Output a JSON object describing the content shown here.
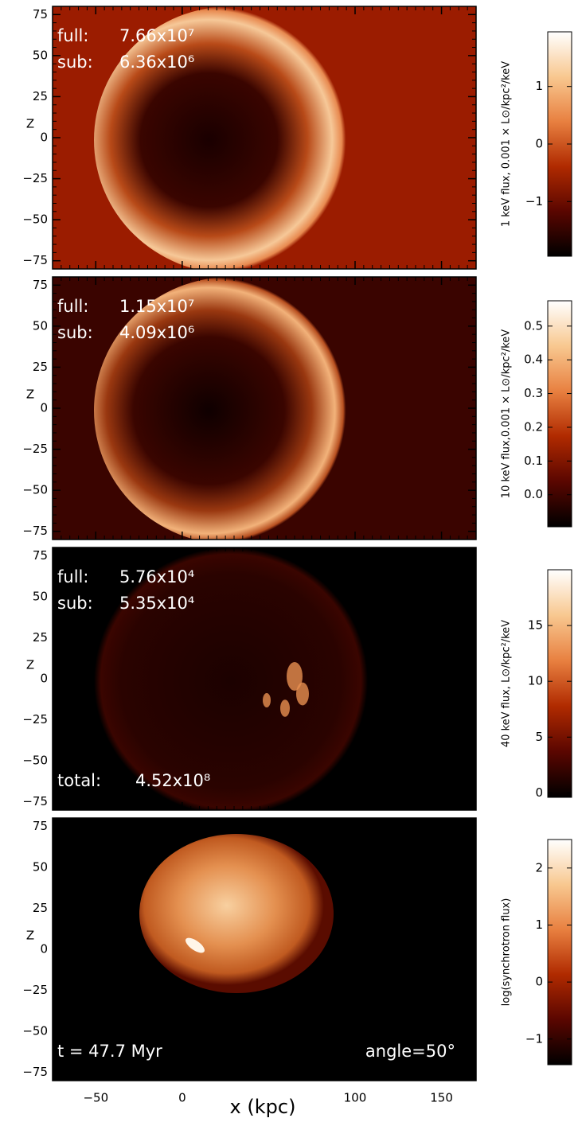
{
  "chart_data": [
    {
      "type": "image",
      "xlim": [
        -75,
        170
      ],
      "ylim": [
        -80,
        80
      ],
      "yticks": [
        {
          "value": 75,
          "label": "75"
        },
        50,
        25,
        0,
        {
          "value": -25,
          "label": "−25"
        },
        {
          "value": -50,
          "label": "−50"
        },
        {
          "value": -75,
          "label": "−75"
        }
      ],
      "ylabel": "Z",
      "annotations": [
        "full:",
        "7.66x10⁷",
        "sub:",
        "6.36x10⁶"
      ],
      "colorbar": {
        "label": "1 keV flux, 0.001 × L⊙/kpc²/keV",
        "lim": [
          -1.95,
          1.95
        ],
        "ticks": [
          1,
          0,
          {
            "value": -1,
            "label": "−1"
          }
        ]
      }
    },
    {
      "type": "image",
      "xlim": [
        -75,
        170
      ],
      "ylim": [
        -80,
        80
      ],
      "yticks": [
        75,
        50,
        25,
        0,
        {
          "value": -25,
          "label": "−25"
        },
        {
          "value": -50,
          "label": "−50"
        },
        {
          "value": -75,
          "label": "−75"
        }
      ],
      "ylabel": "Z",
      "annotations": [
        "full:",
        "1.15x10⁷",
        "sub:",
        "4.09x10⁶"
      ],
      "colorbar": {
        "label": "10 keV flux,0.001 × L⊙/kpc²/keV",
        "lim": [
          -0.095,
          0.575
        ],
        "ticks": [
          0.5,
          0.4,
          0.3,
          0.2,
          0.1,
          {
            "value": 0,
            "label": "0.0"
          }
        ]
      }
    },
    {
      "type": "image",
      "xlim": [
        -75,
        170
      ],
      "ylim": [
        -80,
        80
      ],
      "yticks": [
        75,
        50,
        25,
        0,
        {
          "value": -25,
          "label": "−25"
        },
        {
          "value": -50,
          "label": "−50"
        },
        {
          "value": -75,
          "label": "−75"
        }
      ],
      "ylabel": "Z",
      "annotations": [
        "full:",
        "5.76x10⁴",
        "sub:",
        "5.35x10⁴",
        "total:",
        "4.52x10⁸"
      ],
      "colorbar": {
        "label": "40 keV flux, L⊙/kpc²/keV",
        "lim": [
          -0.4,
          20
        ],
        "ticks": [
          15,
          10,
          5,
          0
        ]
      }
    },
    {
      "type": "image",
      "xlim": [
        -75,
        170
      ],
      "ylim": [
        -80,
        80
      ],
      "yticks": [
        75,
        50,
        25,
        0,
        {
          "value": -25,
          "label": "−25"
        },
        {
          "value": -50,
          "label": "−50"
        },
        {
          "value": -75,
          "label": "−75"
        }
      ],
      "xticks": [
        {
          "value": -50,
          "label": "−50"
        },
        0,
        100,
        150
      ],
      "xlabel": "x (kpc)",
      "ylabel": "Z",
      "annotations": [
        "t  =  47.7 Myr",
        "angle=50°"
      ],
      "colorbar": {
        "label": "log(synchrotron flux)",
        "lim": [
          -1.45,
          2.5
        ],
        "ticks": [
          2,
          1,
          0,
          {
            "value": -1,
            "label": "−1"
          }
        ]
      }
    }
  ],
  "colormap": [
    "#000000",
    "#5a0600",
    "#b02a00",
    "#e88040",
    "#f8c890",
    "#ffffff"
  ]
}
